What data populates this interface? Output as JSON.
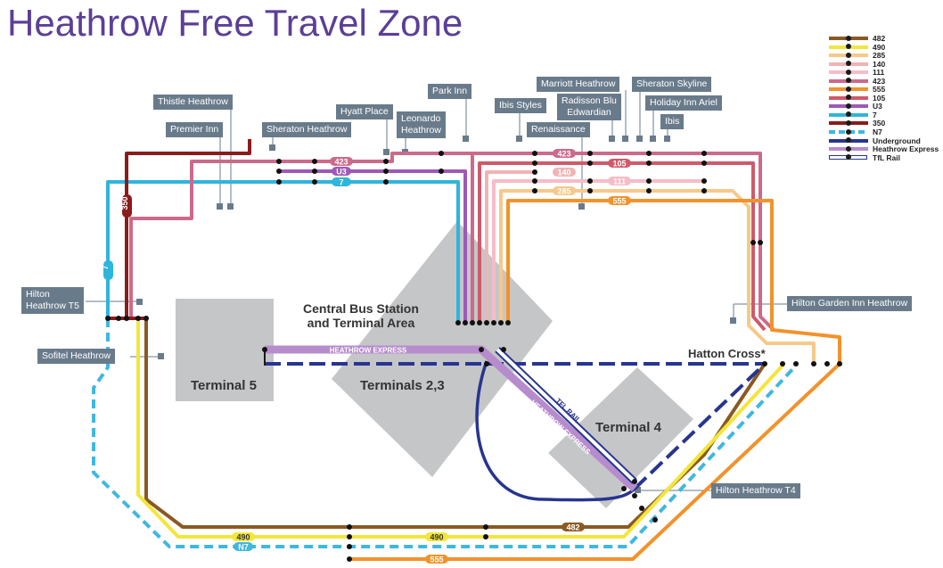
{
  "title": "Heathrow Free Travel Zone",
  "colors": {
    "r482": "#8a5a22",
    "r490": "#f3e63a",
    "r285": "#f7c88a",
    "r140": "#f0b4b4",
    "r111": "#f6bcc8",
    "r423": "#cc6a8a",
    "r555": "#f2922a",
    "r105": "#cf5a6a",
    "U3": "#9e59b8",
    "r7": "#2fb5dc",
    "r350": "#8a1c1c",
    "N7": "#3fb8e0",
    "Underground": "#27358f",
    "HeathrowExpress": "#b78ccc",
    "TfLRail": "#27358f",
    "terminal": "#c5c6c8",
    "hotel_box": "#697b8b",
    "title": "#5b3f96"
  },
  "legend": [
    {
      "label": "482",
      "color": "#8a5a22",
      "style": "solid"
    },
    {
      "label": "490",
      "color": "#f3e63a",
      "style": "solid"
    },
    {
      "label": "285",
      "color": "#f7c88a",
      "style": "solid"
    },
    {
      "label": "140",
      "color": "#f0b4b4",
      "style": "solid"
    },
    {
      "label": "111",
      "color": "#f6bcc8",
      "style": "solid"
    },
    {
      "label": "423",
      "color": "#cc6a8a",
      "style": "solid"
    },
    {
      "label": "555",
      "color": "#f2922a",
      "style": "solid"
    },
    {
      "label": "105",
      "color": "#cf5a6a",
      "style": "solid"
    },
    {
      "label": "U3",
      "color": "#9e59b8",
      "style": "solid"
    },
    {
      "label": "7",
      "color": "#2fb5dc",
      "style": "solid"
    },
    {
      "label": "350",
      "color": "#8a1c1c",
      "style": "solid"
    },
    {
      "label": "N7",
      "color": "#3fb8e0",
      "style": "dash"
    },
    {
      "label": "Underground",
      "color": "#27358f",
      "style": "solid"
    },
    {
      "label": "Heathrow Express",
      "color": "#b78ccc",
      "style": "solid"
    },
    {
      "label": "TfL Rail",
      "color": "#27358f",
      "style": "double"
    }
  ],
  "hotels": {
    "thistle": "Thistle Heathrow",
    "premier": "Premier Inn",
    "sheraton_heathrow": "Sheraton Heathrow",
    "hyatt": "Hyatt Place",
    "leonardo": "Leonardo\nHeathrow",
    "parkinn": "Park Inn",
    "ibis_styles": "Ibis Styles",
    "marriott": "Marriott Heathrow",
    "radisson": "Radisson Blu\nEdwardian",
    "renaissance": "Renaissance",
    "sheraton_skyline": "Sheraton Skyline",
    "holiday_inn": "Holiday Inn Ariel",
    "ibis": "Ibis",
    "hilton_t5": "Hilton\nHeathrow T5",
    "sofitel": "Sofitel Heathrow",
    "hilton_garden": "Hilton Garden Inn Heathrow",
    "hilton_t4": "Hilton Heathrow T4"
  },
  "areas": {
    "central": "Central Bus Station\nand Terminal Area",
    "t5": "Terminal 5",
    "t23": "Terminals 2,3",
    "t4": "Terminal 4",
    "hatton": "Hatton Cross*"
  },
  "route_labels": {
    "l423a": "423",
    "lU3": "U3",
    "l7": "7",
    "l350": "350",
    "l7v": "7",
    "l423b": "423",
    "l105": "105",
    "l140": "140",
    "l111": "111",
    "l285": "285",
    "l555a": "555",
    "l482": "482",
    "l490a": "490",
    "l490b": "490",
    "lN7": "N7",
    "l555b": "555",
    "lHEX": "HEATHROW EXPRESS",
    "lHEX2": "HEATHROW EXPRESS",
    "lTFL": "TFL RAIL"
  }
}
